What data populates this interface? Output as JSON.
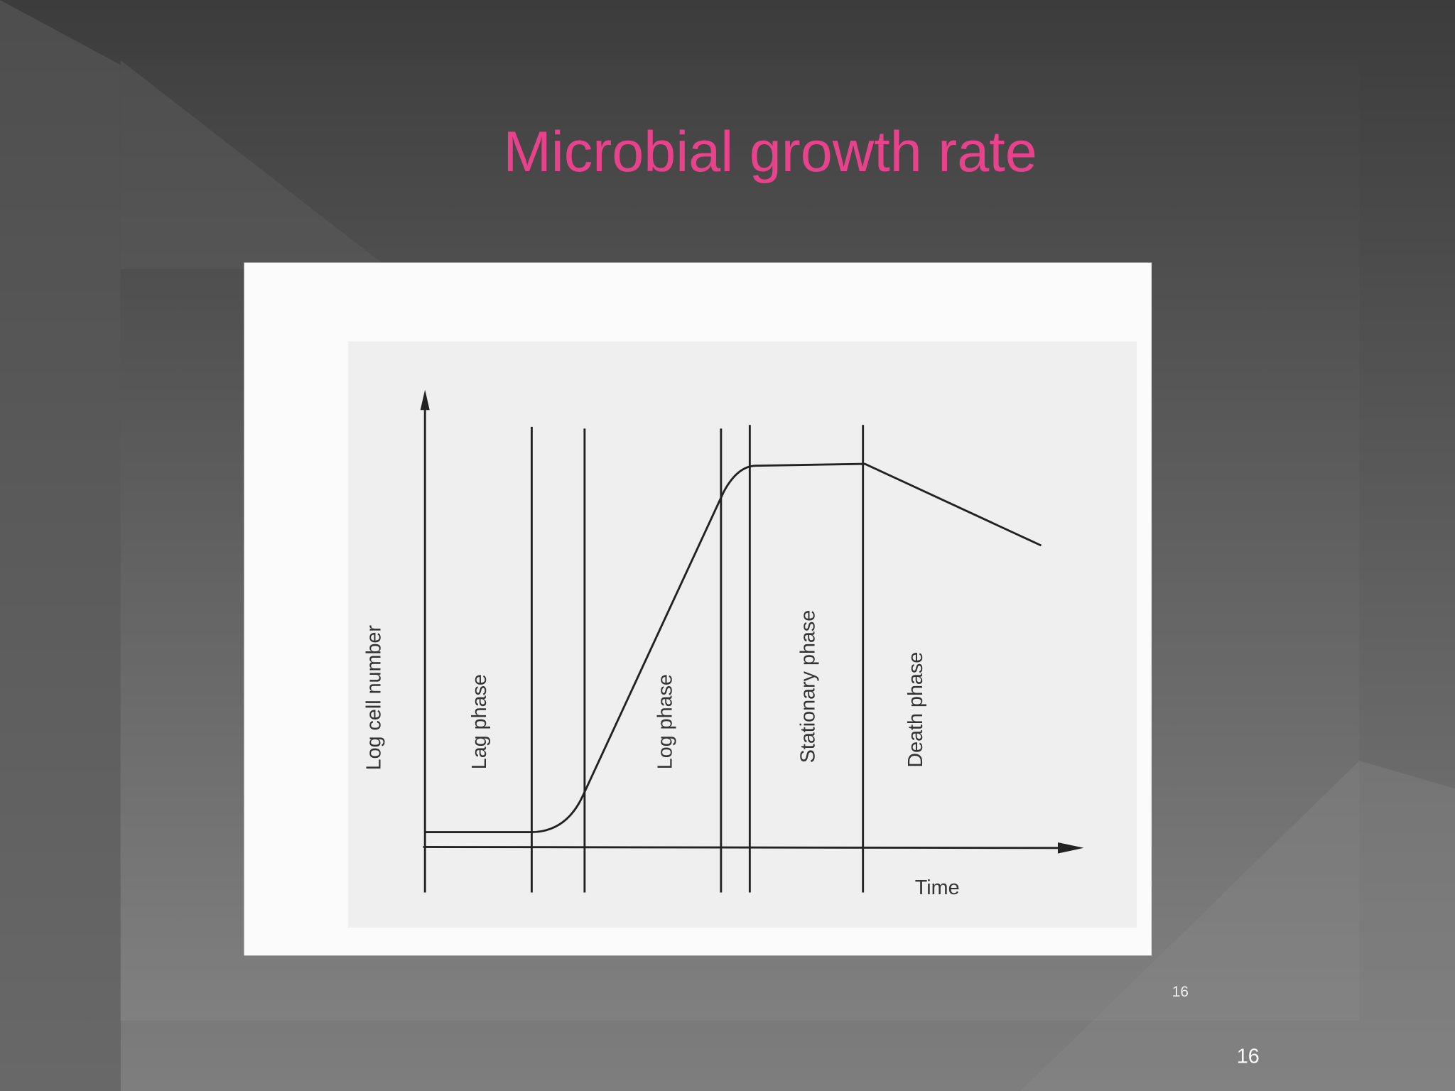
{
  "slide": {
    "title": "Microbial growth rate",
    "diagram": {
      "y_axis_label": "Log cell number",
      "x_axis_label": "Time",
      "phases": [
        "Lag phase",
        "Log phase",
        "Stationary phase",
        "Death phase"
      ]
    },
    "image_page_number": "16",
    "slide_number": "16"
  }
}
